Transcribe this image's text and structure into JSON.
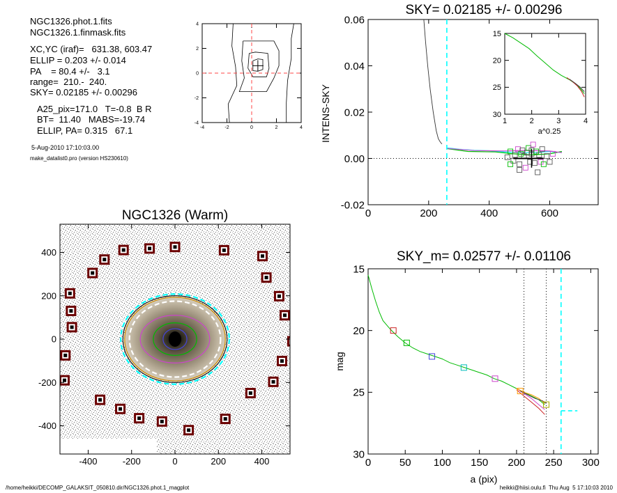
{
  "header": {
    "lines_a": [
      "NGC1326.phot.1.fits",
      "NGC1326.1.finmask.fits"
    ],
    "lines_b": [
      "XC,YC (iraf)=   631.38, 603.47",
      "ELLIP = 0.203 +/- 0.014",
      "PA    = 80.4 +/-   3.1",
      "range=  210.-  240.",
      "SKY= 0.02185 +/- 0.00296"
    ],
    "lines_c": [
      "A25_pix=171.0   T=-0.8  B R",
      "BT=  11.40   MABS=-19.74",
      "ELLIP, PA= 0.315   67.1"
    ],
    "date": "5-Aug-2010 17:10:03.00",
    "program": "make_datalist0.pro (version HS230610)"
  },
  "footer": {
    "left": "/home/heikki/DECOMP_GALAKSIT_050810.dir/NGC1326.phot.1_magplot",
    "right": "heikki@hiisi.oulu.fi  Thu Aug  5 17:10:03 2010"
  },
  "colors": {
    "sky": "#00ffff",
    "red_ref": "#ff4444",
    "green": "#00bb00",
    "magenta": "#cc44cc",
    "blue": "#4444dd",
    "orange": "#ff9900",
    "marker_dark": "#6b0000"
  },
  "chart_data": [
    {
      "id": "centroid",
      "type": "contour",
      "xlim": [
        -4,
        4
      ],
      "ylim": [
        -4,
        4
      ],
      "xticks": [
        "-4",
        "-2",
        "0",
        "2",
        "4"
      ],
      "yticks": [
        "-4",
        "-2",
        "0",
        "2",
        "4"
      ],
      "center": [
        0.5,
        0.6
      ],
      "contours": [
        [
          [
            -1.5,
            4
          ],
          [
            -1.6,
            2.2
          ],
          [
            -1.3,
            0.5
          ],
          [
            -1.2,
            -1
          ],
          [
            -1.9,
            -2.5
          ],
          [
            -1.8,
            -4
          ],
          [
            2.8,
            -4
          ],
          [
            2.8,
            -2.4
          ],
          [
            2.9,
            -0.6
          ],
          [
            3.2,
            1.2
          ],
          [
            3.2,
            2.8
          ],
          [
            3.4,
            4
          ]
        ],
        [
          [
            -0.7,
            2.6
          ],
          [
            -0.8,
            1
          ],
          [
            -0.6,
            -0.4
          ],
          [
            -1,
            -1.5
          ],
          [
            1.2,
            -1.5
          ],
          [
            1.8,
            -0.4
          ],
          [
            2.2,
            0.6
          ],
          [
            2.2,
            1.8
          ],
          [
            1.8,
            2.6
          ],
          [
            -0.7,
            2.6
          ]
        ],
        [
          [
            -0.2,
            1.6
          ],
          [
            -0.3,
            0.4
          ],
          [
            0.1,
            -0.3
          ],
          [
            1.2,
            -0.3
          ],
          [
            1.4,
            0.4
          ],
          [
            1.3,
            1.6
          ],
          [
            0.3,
            1.7
          ],
          [
            -0.2,
            1.6
          ]
        ],
        [
          [
            0.1,
            1
          ],
          [
            0.1,
            0.2
          ],
          [
            0.5,
            0.15
          ],
          [
            0.9,
            0.3
          ],
          [
            0.9,
            1.1
          ],
          [
            0.5,
            1.15
          ],
          [
            0.1,
            1
          ]
        ]
      ]
    },
    {
      "id": "galaxy",
      "type": "image",
      "title": "NGC1326 (Warm)",
      "xlim": [
        -530,
        530
      ],
      "ylim": [
        -530,
        530
      ],
      "xticks": [
        "-400",
        "-200",
        "0",
        "200",
        "400"
      ],
      "yticks": [
        "-400",
        "-200",
        "0",
        "200",
        "400"
      ],
      "ellipses": [
        {
          "rx": 250,
          "ry": 208,
          "color": "#00ffff",
          "dash": true
        },
        {
          "rx": 240,
          "ry": 200,
          "color": "#111111",
          "dash": false
        },
        {
          "rx": 232,
          "ry": 193,
          "color": "#cc8800",
          "dash": false
        },
        {
          "rx": 210,
          "ry": 175,
          "color": "#ffffff",
          "dash": true
        },
        {
          "rx": 160,
          "ry": 110,
          "color": "#cc44cc",
          "dash": false
        },
        {
          "rx": 100,
          "ry": 75,
          "color": "#00bb00",
          "dash": false
        },
        {
          "rx": 55,
          "ry": 48,
          "color": "#4444dd",
          "dash": false
        }
      ],
      "sky_boxes": [
        [
          0,
          425
        ],
        [
          -117,
          418
        ],
        [
          -237,
          411
        ],
        [
          226,
          410
        ],
        [
          -380,
          305
        ],
        [
          -325,
          367
        ],
        [
          403,
          383
        ],
        [
          -484,
          211
        ],
        [
          421,
          284
        ],
        [
          -479,
          130
        ],
        [
          480,
          198
        ],
        [
          -475,
          55
        ],
        [
          506,
          110
        ],
        [
          -505,
          -75
        ],
        [
          -509,
          -190
        ],
        [
          541,
          -10
        ],
        [
          493,
          -101
        ],
        [
          -345,
          -280
        ],
        [
          453,
          -197
        ],
        [
          348,
          -249
        ],
        [
          -252,
          -322
        ],
        [
          -165,
          -365
        ],
        [
          -60,
          -380
        ],
        [
          232,
          -368
        ],
        [
          63,
          -420
        ]
      ]
    },
    {
      "id": "intens",
      "type": "line",
      "title": "SKY= 0.02185 +/- 0.00296",
      "ylabel": "INTENS-SKY",
      "xlim": [
        0,
        760
      ],
      "ylim": [
        -0.02,
        0.06
      ],
      "xticks": [
        "0",
        "200",
        "400",
        "600"
      ],
      "yticks": [
        "-0.02",
        "0.00",
        "0.02",
        "0.04",
        "0.06"
      ],
      "sky_level": 0,
      "sky_a": 260,
      "profile": [
        [
          184,
          0.06
        ],
        [
          190,
          0.05
        ],
        [
          197,
          0.04
        ],
        [
          205,
          0.03
        ],
        [
          215,
          0.02
        ],
        [
          225,
          0.012
        ],
        [
          232,
          0.0085
        ],
        [
          238,
          0.0072
        ],
        [
          244,
          0.0062
        ]
      ],
      "residual_series": [
        {
          "color": "#00ffff",
          "points": [
            [
              262,
              0.0045
            ],
            [
              300,
              0.004
            ],
            [
              350,
              0.0035
            ],
            [
              400,
              0.0033
            ],
            [
              450,
              0.0028
            ],
            [
              500,
              0.0025
            ],
            [
              550,
              0.0025
            ],
            [
              600,
              0.003
            ],
            [
              640,
              0.0025
            ]
          ]
        },
        {
          "color": "#00bb00",
          "points": [
            [
              262,
              0.0042
            ],
            [
              330,
              0.003
            ],
            [
              420,
              0.0028
            ],
            [
              480,
              0.002
            ],
            [
              540,
              0.0015
            ],
            [
              600,
              0.002
            ],
            [
              640,
              0.003
            ]
          ]
        },
        {
          "color": "#cc44cc",
          "points": [
            [
              262,
              0.0043
            ],
            [
              350,
              0.0034
            ],
            [
              450,
              0.0032
            ],
            [
              520,
              0.0035
            ],
            [
              600,
              0.0032
            ],
            [
              640,
              0.0025
            ]
          ]
        }
      ],
      "box_points": [
        [
          460,
          0.0005
        ],
        [
          470,
          0.003
        ],
        [
          480,
          -0.001
        ],
        [
          485,
          0.0015
        ],
        [
          495,
          0.004
        ],
        [
          500,
          -0.0025
        ],
        [
          505,
          0.002
        ],
        [
          510,
          0.0035
        ],
        [
          515,
          0.001
        ],
        [
          520,
          -0.004
        ],
        [
          525,
          0.0025
        ],
        [
          530,
          0.0045
        ],
        [
          535,
          -0.0015
        ],
        [
          540,
          0.002
        ],
        [
          545,
          0.006
        ],
        [
          550,
          -0.002
        ],
        [
          555,
          0.003
        ],
        [
          560,
          -0.006
        ],
        [
          565,
          0.0015
        ],
        [
          570,
          -0.0015
        ],
        [
          575,
          0.004
        ],
        [
          580,
          -0.0025
        ],
        [
          590,
          0.001
        ],
        [
          600,
          -0.0015
        ],
        [
          610,
          0.002
        ],
        [
          500,
          -0.005
        ],
        [
          470,
          -0.0025
        ],
        [
          540,
          0.0035
        ]
      ],
      "box_colors": [
        "#555555",
        "#00bb00",
        "#555555",
        "#555555",
        "#cc44cc"
      ],
      "mean_points": [
        [
          480,
          0
        ],
        [
          540,
          0
        ],
        [
          580,
          0
        ]
      ],
      "inset": {
        "xlabel": "a^0.25",
        "xlim": [
          1,
          4
        ],
        "ylim": [
          30,
          15
        ],
        "xticks": [
          "1",
          "2",
          "3",
          "4"
        ],
        "yticks": [
          "15",
          "20",
          "25",
          "30"
        ],
        "curves": [
          {
            "color": "#00bb00",
            "points": [
              [
                1.0,
                15.0
              ],
              [
                1.3,
                15.8
              ],
              [
                1.6,
                16.8
              ],
              [
                1.9,
                17.8
              ],
              [
                2.2,
                19.2
              ],
              [
                2.5,
                20.5
              ],
              [
                2.8,
                21.8
              ],
              [
                3.1,
                22.8
              ],
              [
                3.4,
                23.6
              ],
              [
                3.6,
                24.3
              ],
              [
                3.8,
                25.2
              ],
              [
                3.95,
                26.2
              ]
            ]
          },
          {
            "color": "#cc2222",
            "points": [
              [
                3.3,
                23.2
              ],
              [
                3.5,
                23.9
              ],
              [
                3.7,
                24.8
              ],
              [
                3.85,
                25.8
              ],
              [
                3.95,
                26.8
              ]
            ]
          },
          {
            "color": "#444444",
            "points": [
              [
                3.4,
                23.5
              ],
              [
                3.6,
                24.2
              ],
              [
                3.8,
                25.0
              ],
              [
                3.95,
                25.8
              ]
            ]
          }
        ]
      }
    },
    {
      "id": "magprofile",
      "type": "line",
      "title": "SKY_m=  0.02577 +/- 0.01106",
      "xlabel": "a (pix)",
      "ylabel": "mag",
      "xlim": [
        0,
        310
      ],
      "ylim": [
        30,
        15
      ],
      "xticks": [
        "0",
        "50",
        "100",
        "150",
        "200",
        "250",
        "300"
      ],
      "yticks": [
        "15",
        "20",
        "25",
        "30"
      ],
      "range_lines": [
        210,
        240
      ],
      "sky_a": 260,
      "sky_mag": 26.5,
      "sky_mag_range": [
        260,
        282
      ],
      "curves": [
        {
          "color": "#00bb00",
          "points": [
            [
              0,
              15.5
            ],
            [
              5,
              16.6
            ],
            [
              10,
              17.6
            ],
            [
              15,
              18.5
            ],
            [
              20,
              19.2
            ],
            [
              30,
              19.9
            ],
            [
              40,
              20.5
            ],
            [
              50,
              21.0
            ],
            [
              60,
              21.4
            ],
            [
              70,
              21.7
            ],
            [
              80,
              21.9
            ],
            [
              90,
              22.1
            ],
            [
              100,
              22.3
            ],
            [
              110,
              22.6
            ],
            [
              120,
              22.8
            ],
            [
              130,
              23.0
            ],
            [
              140,
              23.2
            ],
            [
              150,
              23.4
            ],
            [
              160,
              23.6
            ],
            [
              170,
              23.9
            ],
            [
              180,
              24.1
            ],
            [
              190,
              24.4
            ],
            [
              200,
              24.7
            ],
            [
              210,
              25.0
            ],
            [
              220,
              25.3
            ],
            [
              230,
              25.6
            ],
            [
              238,
              26.0
            ]
          ]
        },
        {
          "color": "#cc2222",
          "points": [
            [
              200,
              24.8
            ],
            [
              210,
              25.3
            ],
            [
              220,
              25.8
            ],
            [
              230,
              26.3
            ],
            [
              238,
              26.8
            ]
          ]
        },
        {
          "color": "#cc44cc",
          "points": [
            [
              200,
              24.7
            ],
            [
              210,
              25.1
            ],
            [
              220,
              25.5
            ],
            [
              230,
              26.0
            ],
            [
              238,
              26.4
            ]
          ]
        },
        {
          "color": "#ff9900",
          "points": [
            [
              200,
              24.7
            ],
            [
              210,
              25.0
            ],
            [
              220,
              25.2
            ],
            [
              230,
              25.5
            ],
            [
              238,
              25.9
            ]
          ]
        },
        {
          "color": "#444444",
          "points": [
            [
              205,
              24.9
            ],
            [
              215,
              25.2
            ],
            [
              225,
              25.5
            ],
            [
              235,
              25.7
            ],
            [
              240,
              25.9
            ]
          ]
        }
      ],
      "boxes": [
        {
          "x": 34,
          "y": 20.0,
          "color": "#cc2222"
        },
        {
          "x": 52,
          "y": 21.0,
          "color": "#00bb00"
        },
        {
          "x": 86,
          "y": 22.1,
          "color": "#4444dd"
        },
        {
          "x": 129,
          "y": 23.0,
          "color": "#00bbbb"
        },
        {
          "x": 171,
          "y": 23.9,
          "color": "#cc44cc"
        },
        {
          "x": 205,
          "y": 24.9,
          "color": "#ff9900"
        },
        {
          "x": 240,
          "y": 26.0,
          "color": "#aaaa00"
        }
      ]
    }
  ]
}
